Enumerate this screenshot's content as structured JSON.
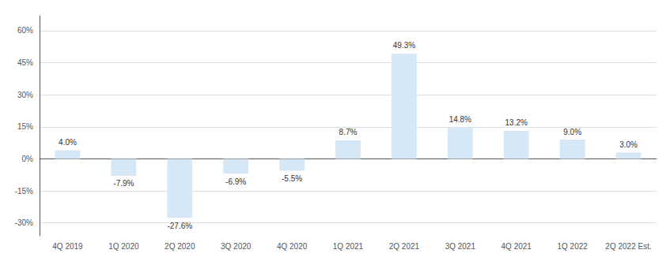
{
  "chart_data": {
    "type": "bar",
    "categories": [
      "4Q 2019",
      "1Q 2020",
      "2Q 2020",
      "3Q 2020",
      "4Q 2020",
      "1Q 2021",
      "2Q 2021",
      "3Q 2021",
      "4Q 2021",
      "1Q 2022",
      "2Q 2022 Est."
    ],
    "values": [
      4.0,
      -7.9,
      -27.6,
      -6.9,
      -5.5,
      8.7,
      49.3,
      14.8,
      13.2,
      9.0,
      3.0
    ],
    "value_labels": [
      "4.0%",
      "-7.9%",
      "-27.6%",
      "-6.9%",
      "-5.5%",
      "8.7%",
      "49.3%",
      "14.8%",
      "13.2%",
      "9.0%",
      "3.0%"
    ],
    "data_labels": true,
    "color": "#d6e8f5",
    "ylim": [
      -36,
      67
    ],
    "yticks": [
      {
        "value": -30,
        "label": "-30%"
      },
      {
        "value": -15,
        "label": "-15%"
      },
      {
        "value": 0,
        "label": "0%"
      },
      {
        "value": 15,
        "label": "15%"
      },
      {
        "value": 30,
        "label": "30%"
      },
      {
        "value": 45,
        "label": "45%"
      },
      {
        "value": 60,
        "label": "60%"
      }
    ],
    "grid": true
  }
}
